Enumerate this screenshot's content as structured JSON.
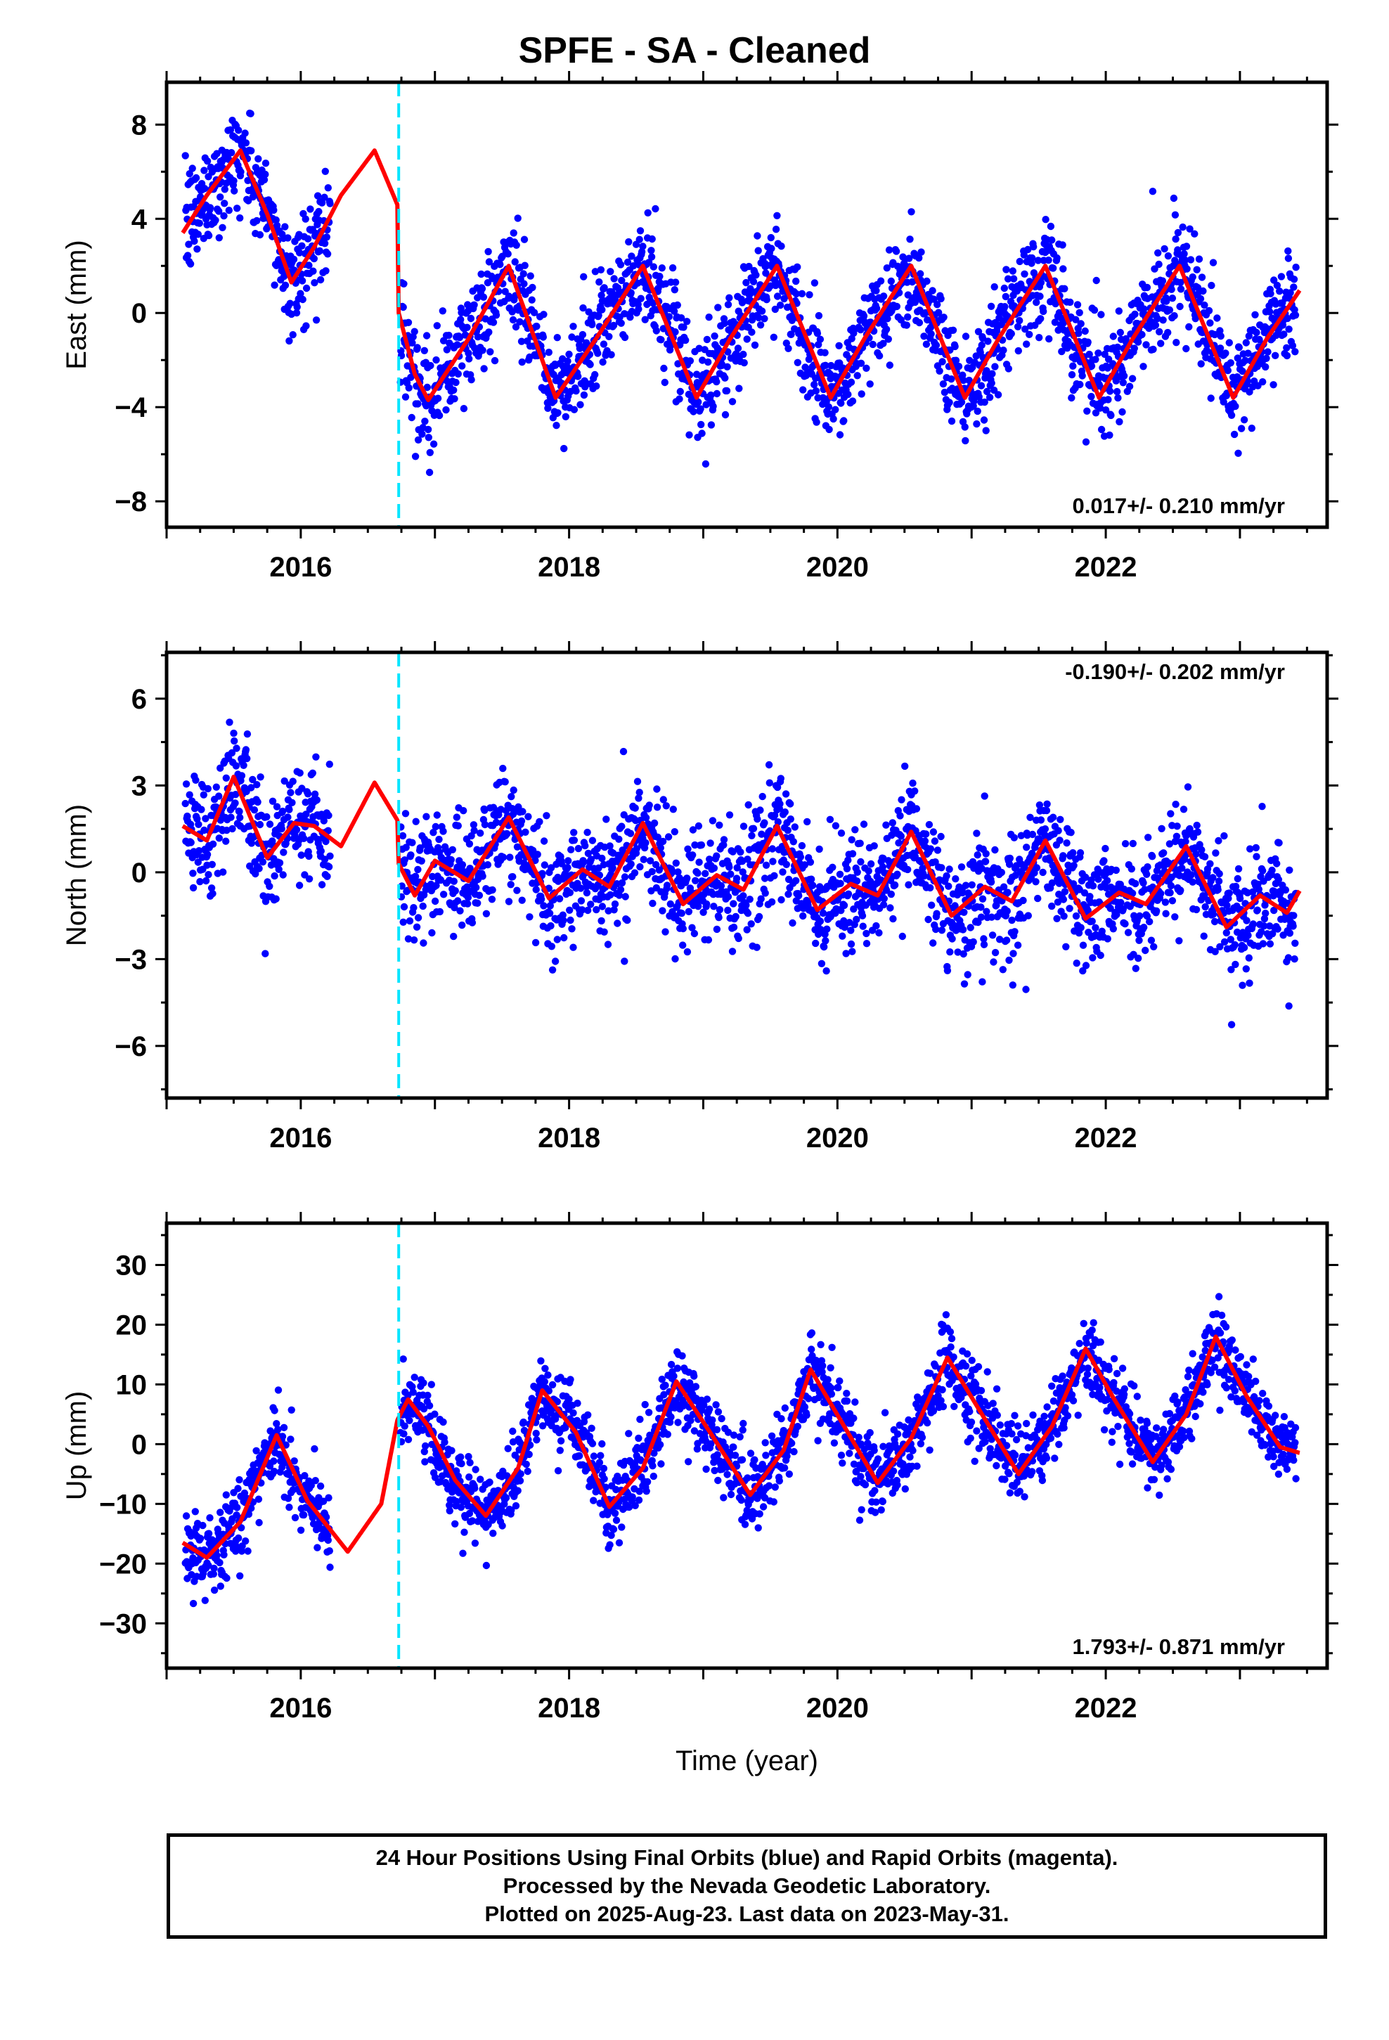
{
  "title": "SPFE  - SA - Cleaned",
  "xlabel": "Time (year)",
  "colors": {
    "data": "#0000ff",
    "model": "#ff0000",
    "offset": "#00e5ff",
    "frame": "#000000"
  },
  "chart_data": [
    {
      "type": "scatter",
      "ylabel": "East (mm)",
      "xlim": [
        2015.0,
        2023.65
      ],
      "ylim": [
        -9.1,
        9.8
      ],
      "xticks": [
        2016,
        2018,
        2020,
        2022
      ],
      "yticks": [
        -8,
        -4,
        0,
        4,
        8
      ],
      "ytick_labels": [
        "−8",
        "−4",
        "0",
        "4",
        "8"
      ],
      "rate": "0.017+/- 0.210 mm/yr",
      "rate_position": "bottom-right",
      "offset_x": 2016.73,
      "seasonal": {
        "mean": -0.8,
        "amp1": 2.8,
        "phase1": 0.55,
        "amp2": 0.8,
        "phase2": 0.2,
        "noise": 1.1
      },
      "series": [
        {
          "name": "",
          "kind": "model-curve",
          "x": [
            2015.12,
            2015.3,
            2015.55,
            2015.75,
            2015.93,
            2016.1,
            2016.3,
            2016.55,
            2016.72,
            2016.73,
            2016.85,
            2016.95,
            2017.25,
            2017.55,
            2017.9,
            2018.2,
            2018.55,
            2018.95,
            2019.2,
            2019.55,
            2019.95,
            2020.2,
            2020.55,
            2020.95,
            2021.2,
            2021.55,
            2021.95,
            2022.2,
            2022.55,
            2022.95,
            2023.2,
            2023.45
          ],
          "y": [
            3.4,
            5.0,
            6.9,
            4.2,
            1.3,
            2.8,
            5.0,
            6.9,
            4.6,
            0.0,
            -2.6,
            -3.7,
            -1.1,
            2.0,
            -3.6,
            -1.1,
            2.0,
            -3.6,
            -1.1,
            2.0,
            -3.6,
            -1.1,
            2.0,
            -3.6,
            -1.1,
            2.0,
            -3.6,
            -1.1,
            2.0,
            -3.6,
            -1.1,
            1.0
          ]
        }
      ]
    },
    {
      "type": "scatter",
      "ylabel": "North (mm)",
      "xlim": [
        2015.0,
        2023.65
      ],
      "ylim": [
        -7.8,
        7.6
      ],
      "xticks": [
        2016,
        2018,
        2020,
        2022
      ],
      "yticks": [
        -6,
        -3,
        0,
        3,
        6
      ],
      "ytick_labels": [
        "−6",
        "−3",
        "0",
        "3",
        "6"
      ],
      "rate": "-0.190+/- 0.202 mm/yr",
      "rate_position": "top-right",
      "offset_x": 2016.73,
      "seasonal": {
        "mean": 0.0,
        "amp1": 0.9,
        "phase1": 0.55,
        "amp2": 0.6,
        "phase2": 0.1,
        "noise": 1.0
      },
      "series": [
        {
          "name": "",
          "kind": "model-curve",
          "x": [
            2015.12,
            2015.3,
            2015.5,
            2015.75,
            2015.95,
            2016.1,
            2016.3,
            2016.55,
            2016.72,
            2016.73,
            2016.85,
            2017.0,
            2017.25,
            2017.55,
            2017.85,
            2018.1,
            2018.3,
            2018.55,
            2018.85,
            2019.1,
            2019.3,
            2019.55,
            2019.85,
            2020.1,
            2020.3,
            2020.55,
            2020.85,
            2021.1,
            2021.3,
            2021.55,
            2021.85,
            2022.1,
            2022.3,
            2022.6,
            2022.9,
            2023.15,
            2023.35,
            2023.45
          ],
          "y": [
            1.6,
            1.1,
            3.3,
            0.5,
            1.7,
            1.6,
            0.9,
            3.1,
            1.8,
            0.3,
            -0.8,
            0.4,
            -0.3,
            1.9,
            -0.9,
            0.1,
            -0.5,
            1.7,
            -1.1,
            -0.1,
            -0.6,
            1.6,
            -1.3,
            -0.4,
            -0.8,
            1.4,
            -1.5,
            -0.5,
            -1.0,
            1.1,
            -1.6,
            -0.7,
            -1.1,
            0.9,
            -1.9,
            -0.8,
            -1.4,
            -0.6
          ]
        }
      ]
    },
    {
      "type": "scatter",
      "ylabel": "Up (mm)",
      "xlim": [
        2015.0,
        2023.65
      ],
      "ylim": [
        -37.5,
        37.0
      ],
      "xticks": [
        2016,
        2018,
        2020,
        2022
      ],
      "yticks": [
        -30,
        -20,
        -10,
        0,
        10,
        20,
        30
      ],
      "ytick_labels": [
        "−30",
        "−20",
        "−10",
        "0",
        "10",
        "20",
        "30"
      ],
      "rate": "1.793+/- 0.871 mm/yr",
      "rate_position": "bottom-right",
      "offset_x": 2016.73,
      "seasonal": {
        "mean": 0.0,
        "amp1": 10.0,
        "phase1": 0.05,
        "amp2": 1.5,
        "phase2": 0.3,
        "noise": 3.2
      },
      "series": [
        {
          "name": "",
          "kind": "model-curve",
          "x": [
            2015.12,
            2015.3,
            2015.55,
            2015.82,
            2016.05,
            2016.35,
            2016.6,
            2016.72,
            2016.8,
            2016.95,
            2017.15,
            2017.38,
            2017.62,
            2017.8,
            2018.05,
            2018.3,
            2018.55,
            2018.8,
            2019.05,
            2019.35,
            2019.6,
            2019.8,
            2020.05,
            2020.3,
            2020.55,
            2020.82,
            2021.05,
            2021.35,
            2021.6,
            2021.85,
            2022.05,
            2022.35,
            2022.6,
            2022.82,
            2023.05,
            2023.3,
            2023.45
          ],
          "y": [
            -16.5,
            -19.0,
            -13.0,
            1.5,
            -9.5,
            -18.0,
            -10.0,
            4.0,
            7.5,
            3.0,
            -6.0,
            -12.0,
            -4.0,
            9.0,
            2.0,
            -10.5,
            -4.0,
            10.5,
            2.0,
            -8.5,
            -1.0,
            12.5,
            3.0,
            -6.5,
            1.0,
            14.5,
            6.0,
            -5.0,
            3.0,
            16.0,
            8.0,
            -3.0,
            5.0,
            18.0,
            8.0,
            -0.5,
            -1.5
          ]
        }
      ]
    }
  ],
  "footer": {
    "line1": "24 Hour Positions Using Final Orbits (blue) and Rapid Orbits (magenta).",
    "line2": "Processed by the Nevada Geodetic Laboratory.",
    "line3": "Plotted on 2025-Aug-23. Last data on 2023-May-31."
  }
}
